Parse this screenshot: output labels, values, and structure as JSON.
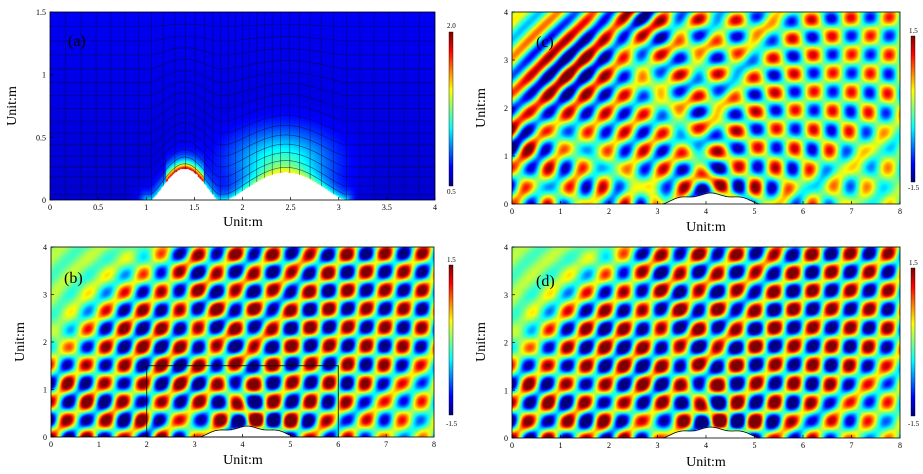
{
  "colors": {
    "jet": [
      "#00007f",
      "#0000ff",
      "#007fff",
      "#00ffff",
      "#7fff7f",
      "#ffff00",
      "#ff7f00",
      "#ff0000",
      "#7f0000"
    ],
    "mesh_line": "#0a0a3a",
    "obstacle": "#ffffff",
    "box": "#000000"
  },
  "chart_data": [
    {
      "id": "a",
      "type": "heatmap",
      "panel_label": "(a)",
      "xlabel": "Unit:m",
      "ylabel": "Unit:m",
      "xlim": [
        0,
        4
      ],
      "ylim": [
        0,
        1.5
      ],
      "xticks": [
        "0",
        "0.5",
        "1",
        "1.5",
        "2",
        "2.5",
        "3",
        "3.5",
        "4"
      ],
      "yticks": [
        "0",
        "0.5",
        "1",
        "1.5"
      ],
      "colorbar": {
        "min": 0.5,
        "max": 2.0,
        "top_label": "2.0",
        "bottom_label": "0.5"
      },
      "grid": true,
      "features": {
        "bumps": [
          {
            "center": 1.4,
            "halfwidth": 0.35,
            "height": 0.25
          },
          {
            "center": 2.45,
            "halfwidth": 0.62,
            "height": 0.22
          }
        ],
        "bump_range": [
          1.05,
          3.05
        ]
      }
    },
    {
      "id": "b",
      "type": "heatmap",
      "panel_label": "(b)",
      "xlabel": "Unit:m",
      "ylabel": "Unit:m",
      "xlim": [
        0,
        8
      ],
      "ylim": [
        0,
        4
      ],
      "xticks": [
        "0",
        "1",
        "2",
        "3",
        "4",
        "5",
        "6",
        "7",
        "8"
      ],
      "yticks": [
        "0",
        "1",
        "2",
        "3",
        "4"
      ],
      "colorbar": {
        "min": -1.5,
        "max": 1.5,
        "top_label": "1.5",
        "bottom_label": "-1.5"
      },
      "features": {
        "box": [
          2,
          0,
          6,
          1.5
        ],
        "obstacle_range": [
          3.1,
          5.1
        ]
      }
    },
    {
      "id": "c",
      "type": "heatmap",
      "panel_label": "(c)",
      "xlabel": "Unit:m",
      "ylabel": "Unit:m",
      "xlim": [
        0,
        8
      ],
      "ylim": [
        0,
        4
      ],
      "xticks": [
        "0",
        "1",
        "2",
        "3",
        "4",
        "5",
        "6",
        "7",
        "8"
      ],
      "yticks": [
        "0",
        "1",
        "2",
        "3",
        "4"
      ],
      "colorbar": {
        "min": -1.5,
        "max": 1.5,
        "top_label": "1.5",
        "bottom_label": "-1.5"
      },
      "features": {
        "obstacle_range": [
          3.1,
          5.1
        ]
      }
    },
    {
      "id": "d",
      "type": "heatmap",
      "panel_label": "(d)",
      "xlabel": "Unit:m",
      "ylabel": "Unit:m",
      "xlim": [
        0,
        8
      ],
      "ylim": [
        0,
        4
      ],
      "xticks": [
        "0",
        "1",
        "2",
        "3",
        "4",
        "5",
        "6",
        "7",
        "8"
      ],
      "yticks": [
        "0",
        "1",
        "2",
        "3",
        "4"
      ],
      "colorbar": {
        "min": -1.5,
        "max": 1.5,
        "top_label": "1.5",
        "bottom_label": "-1.5"
      },
      "features": {
        "obstacle_range": [
          3.1,
          5.1
        ]
      }
    }
  ]
}
